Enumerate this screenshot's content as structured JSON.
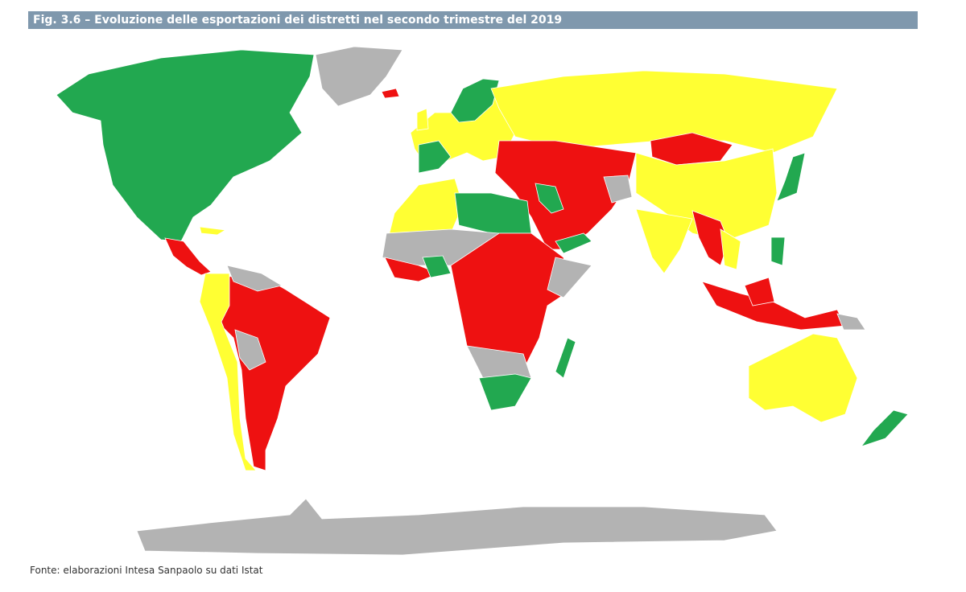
{
  "header": {
    "title": "Fig. 3.6 – Evoluzione delle esportazioni dei distretti nel secondo trimestre del 2019"
  },
  "footer": {
    "source": "Fonte: elaborazioni Intesa Sanpaolo su dati Istat"
  }
}
